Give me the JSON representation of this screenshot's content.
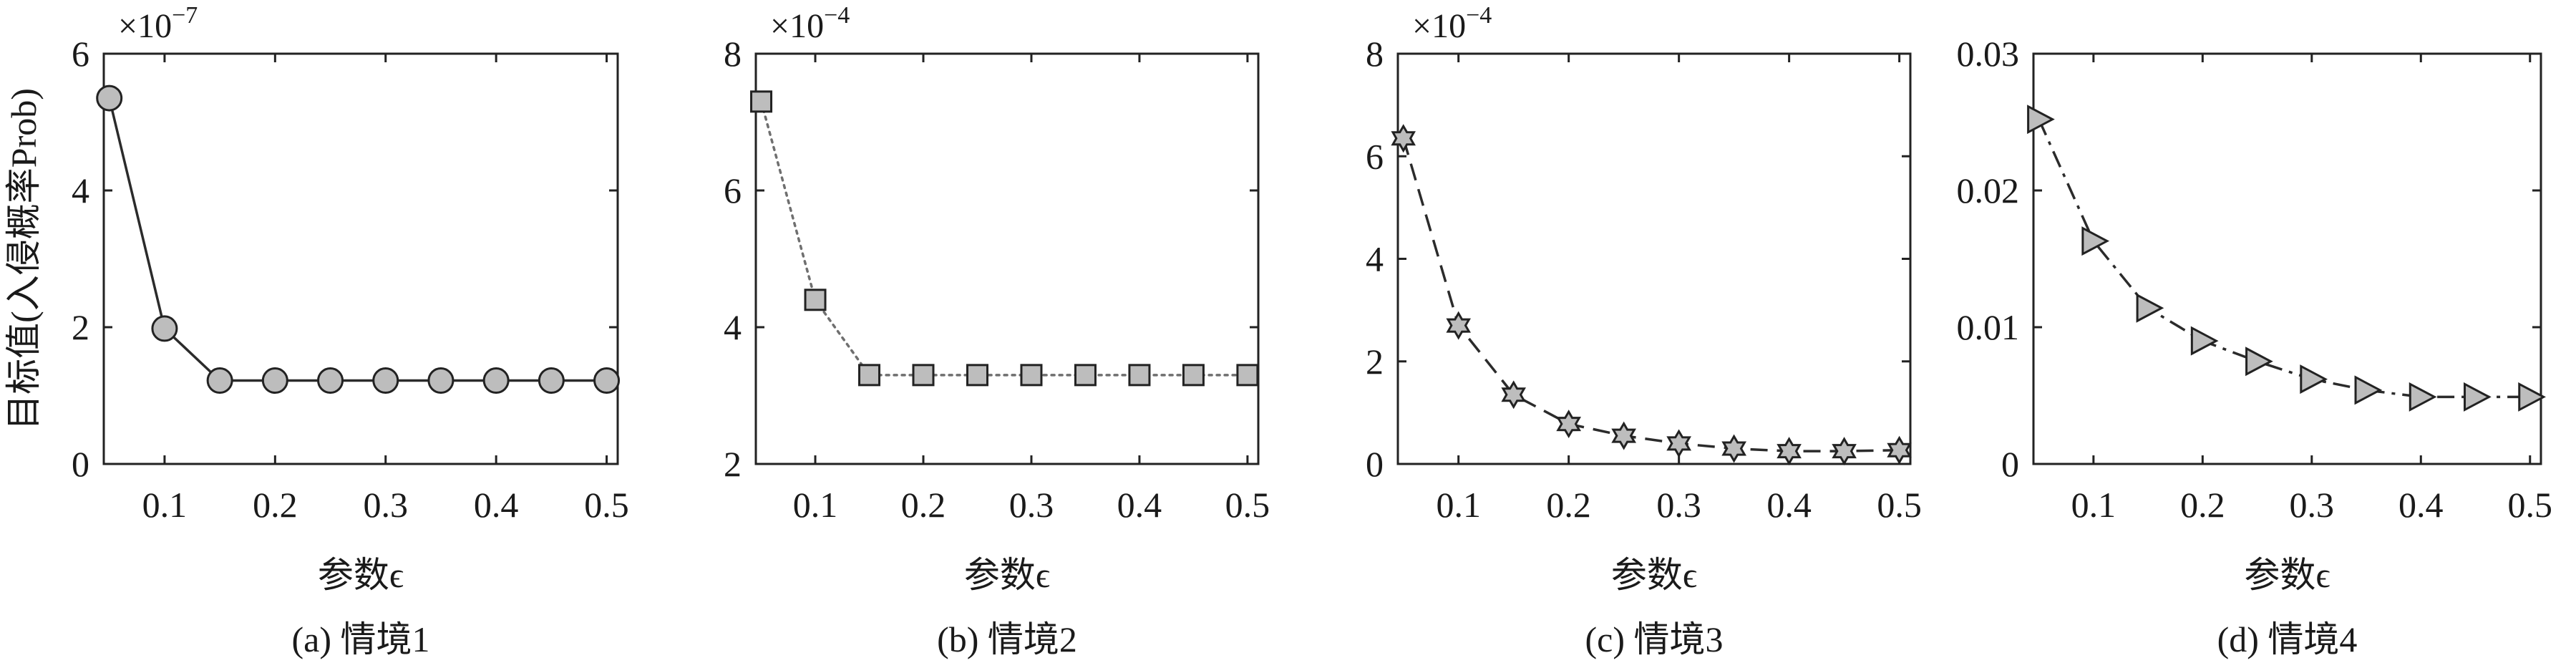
{
  "chart_data": [
    {
      "type": "line",
      "title": "(a) 情境1",
      "xlabel": "参数ϵ",
      "ylabel": "目标值(入侵概率Prob)",
      "xlim": [
        0.045,
        0.51
      ],
      "xticks": [
        0.1,
        0.2,
        0.3,
        0.4,
        0.5
      ],
      "ylim": [
        0,
        6
      ],
      "yticks": [
        0,
        2,
        4,
        6
      ],
      "y_multiplier": {
        "base": "×10",
        "exponent": "−7"
      },
      "grid": false,
      "x": [
        0.05,
        0.1,
        0.15,
        0.2,
        0.25,
        0.3,
        0.35,
        0.4,
        0.45,
        0.5
      ],
      "series": [
        {
          "values": [
            5.35,
            1.98,
            1.22,
            1.22,
            1.22,
            1.22,
            1.22,
            1.22,
            1.22,
            1.22
          ],
          "marker": "circle",
          "line_style": "solid",
          "line_color": "#2b2b2b",
          "marker_fill": "#bdbdbd",
          "marker_edge": "#222222"
        }
      ]
    },
    {
      "type": "line",
      "title": "(b) 情境2",
      "xlabel": "参数ϵ",
      "xlim": [
        0.045,
        0.51
      ],
      "xticks": [
        0.1,
        0.2,
        0.3,
        0.4,
        0.5
      ],
      "ylim": [
        2,
        8
      ],
      "yticks": [
        2,
        4,
        6,
        8
      ],
      "y_multiplier": {
        "base": "×10",
        "exponent": "−4"
      },
      "grid": false,
      "x": [
        0.05,
        0.1,
        0.15,
        0.2,
        0.25,
        0.3,
        0.35,
        0.4,
        0.45,
        0.5
      ],
      "series": [
        {
          "values": [
            7.3,
            4.4,
            3.3,
            3.3,
            3.3,
            3.3,
            3.3,
            3.3,
            3.3,
            3.3
          ],
          "marker": "square",
          "line_style": "dotted",
          "line_color": "#6f6f6f",
          "marker_fill": "#bdbdbd",
          "marker_edge": "#222222"
        }
      ]
    },
    {
      "type": "line",
      "title": "(c) 情境3",
      "xlabel": "参数ϵ",
      "xlim": [
        0.045,
        0.51
      ],
      "xticks": [
        0.1,
        0.2,
        0.3,
        0.4,
        0.5
      ],
      "ylim": [
        0,
        8
      ],
      "yticks": [
        0,
        2,
        4,
        6,
        8
      ],
      "y_multiplier": {
        "base": "×10",
        "exponent": "−4"
      },
      "grid": false,
      "x": [
        0.05,
        0.1,
        0.15,
        0.2,
        0.25,
        0.3,
        0.35,
        0.4,
        0.45,
        0.5
      ],
      "series": [
        {
          "values": [
            6.35,
            2.7,
            1.35,
            0.78,
            0.55,
            0.4,
            0.3,
            0.25,
            0.25,
            0.27
          ],
          "marker": "hexagram",
          "line_style": "dashed",
          "line_color": "#2b2b2b",
          "marker_fill": "#bdbdbd",
          "marker_edge": "#222222"
        }
      ]
    },
    {
      "type": "line",
      "title": "(d) 情境4",
      "xlabel": "参数ϵ",
      "xlim": [
        0.045,
        0.51
      ],
      "xticks": [
        0.1,
        0.2,
        0.3,
        0.4,
        0.5
      ],
      "ylim": [
        0,
        0.03
      ],
      "yticks": [
        0,
        0.01,
        0.02,
        0.03
      ],
      "grid": false,
      "x": [
        0.05,
        0.1,
        0.15,
        0.2,
        0.25,
        0.3,
        0.35,
        0.4,
        0.45,
        0.5
      ],
      "series": [
        {
          "values": [
            0.0252,
            0.0163,
            0.0114,
            0.009,
            0.0075,
            0.0062,
            0.0054,
            0.0049,
            0.0049,
            0.0049
          ],
          "marker": "triangle-right",
          "line_style": "dash-dot",
          "line_color": "#2b2b2b",
          "marker_fill": "#bdbdbd",
          "marker_edge": "#222222"
        }
      ]
    }
  ]
}
